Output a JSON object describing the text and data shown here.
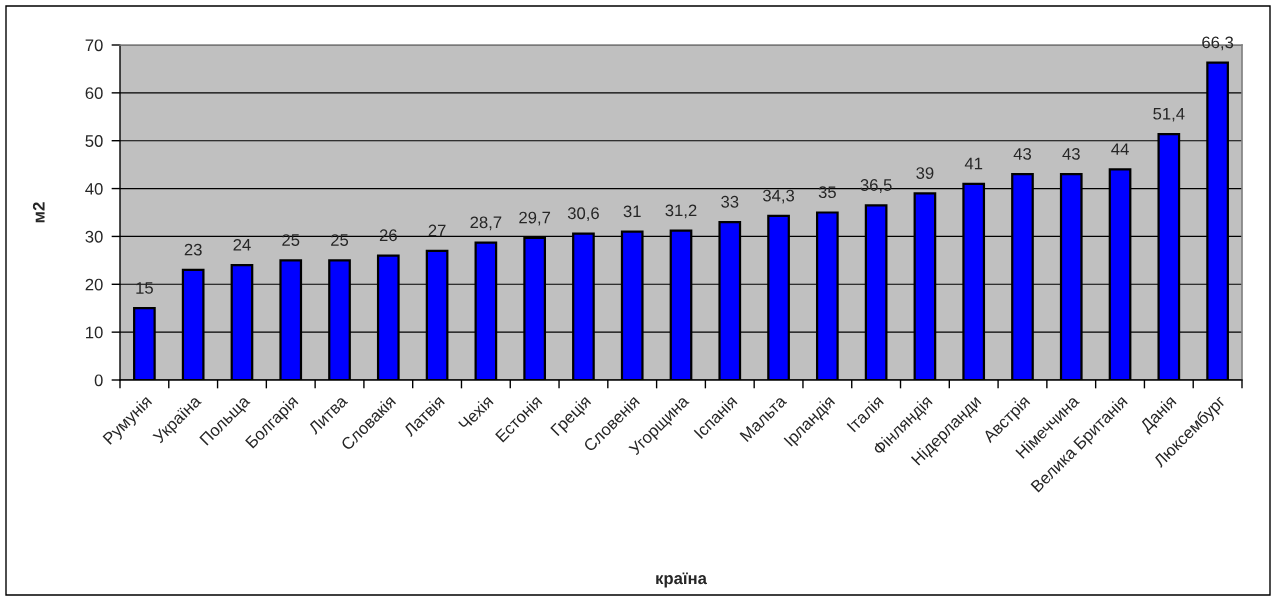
{
  "chart_data": {
    "type": "bar",
    "xlabel": "країна",
    "ylabel": "м2",
    "categories": [
      "Румунія",
      "Україна",
      "Польща",
      "Болгарія",
      "Литва",
      "Словакія",
      "Латвія",
      "Чехія",
      "Естонія",
      "Греція",
      "Словенія",
      "Угорщина",
      "Іспанія",
      "Мальта",
      "Ірландія",
      "Італія",
      "Фінляндія",
      "Нідерланди",
      "Австрія",
      "Німеччина",
      "Велика Британія",
      "Данія",
      "Люксембург"
    ],
    "values": [
      15,
      23,
      24,
      25,
      25,
      26,
      27,
      28.7,
      29.7,
      30.6,
      31,
      31.2,
      33,
      34.3,
      35,
      36.5,
      39,
      41,
      43,
      43,
      44,
      51.4,
      66.3
    ],
    "value_labels": [
      "15",
      "23",
      "24",
      "25",
      "25",
      "26",
      "27",
      "28,7",
      "29,7",
      "30,6",
      "31",
      "31,2",
      "33",
      "34,3",
      "35",
      "36,5",
      "39",
      "41",
      "43",
      "43",
      "44",
      "51,4",
      "66,3"
    ],
    "color": "#0000ff",
    "ylim": [
      0,
      70
    ],
    "yticks": [
      0,
      10,
      20,
      30,
      40,
      50,
      60,
      70
    ],
    "grid": "y"
  }
}
